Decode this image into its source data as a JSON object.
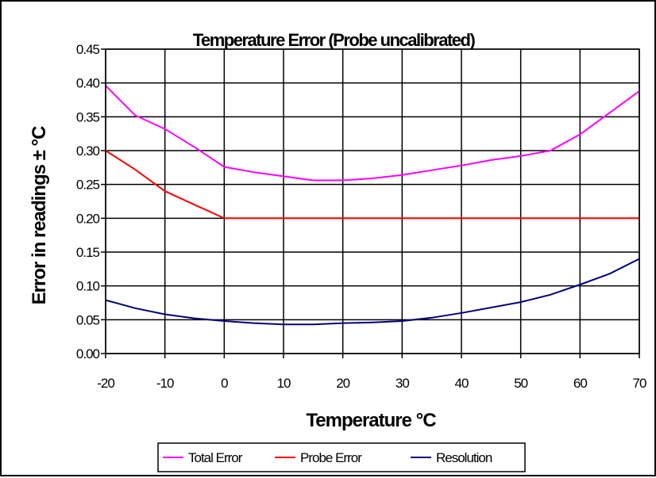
{
  "chart_data": {
    "type": "line",
    "title": "Temperature Error (Probe uncalibrated)",
    "xlabel": "Temperature °C",
    "ylabel": "Error in readings ± °C",
    "xlim": [
      -20,
      70
    ],
    "ylim": [
      0,
      0.45
    ],
    "x_ticks": [
      "-20",
      "-10",
      "0",
      "10",
      "20",
      "30",
      "40",
      "50",
      "60",
      "70"
    ],
    "y_ticks": [
      "0.00",
      "0.05",
      "0.10",
      "0.15",
      "0.20",
      "0.25",
      "0.30",
      "0.35",
      "0.40",
      "0.45"
    ],
    "grid": true,
    "legend_position": "bottom",
    "series": [
      {
        "name": "Total Error",
        "color": "#ff00ff",
        "x": [
          -20,
          -15,
          -10,
          -5,
          0,
          5,
          10,
          15,
          20,
          25,
          30,
          35,
          40,
          45,
          50,
          55,
          60,
          65,
          70
        ],
        "y": [
          0.396,
          0.352,
          0.332,
          0.305,
          0.276,
          0.268,
          0.262,
          0.256,
          0.256,
          0.259,
          0.264,
          0.271,
          0.278,
          0.286,
          0.292,
          0.3,
          0.324,
          0.356,
          0.388
        ]
      },
      {
        "name": "Probe Error",
        "color": "#ff0000",
        "x": [
          -20,
          -15,
          -10,
          -5,
          0,
          10,
          20,
          30,
          40,
          50,
          60,
          70
        ],
        "y": [
          0.3,
          0.272,
          0.24,
          0.22,
          0.2,
          0.2,
          0.2,
          0.2,
          0.2,
          0.2,
          0.2,
          0.2
        ]
      },
      {
        "name": "Resolution",
        "color": "#000080",
        "x": [
          -20,
          -15,
          -10,
          -5,
          0,
          5,
          10,
          15,
          20,
          25,
          30,
          35,
          40,
          45,
          50,
          55,
          60,
          65,
          70
        ],
        "y": [
          0.079,
          0.067,
          0.058,
          0.052,
          0.048,
          0.045,
          0.043,
          0.043,
          0.045,
          0.046,
          0.048,
          0.053,
          0.06,
          0.068,
          0.076,
          0.087,
          0.102,
          0.118,
          0.14
        ]
      }
    ]
  }
}
